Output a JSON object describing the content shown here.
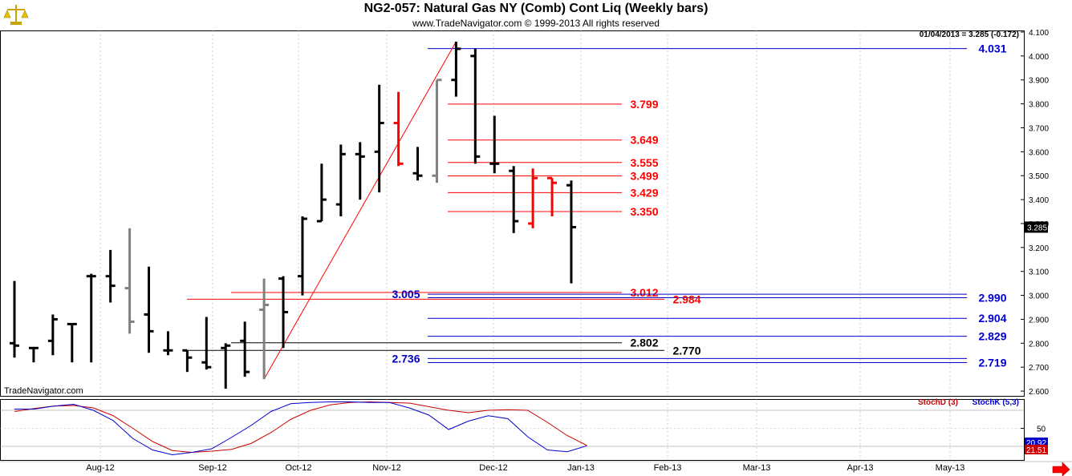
{
  "header": {
    "title": "NG2-057:  Natural Gas NY (Comb) Cont Liq  (Weekly bars)",
    "subtitle": "www.TradeNavigator.com © 1999-2013 All rights reserved",
    "last_quote": "01/04/2013 = 3.285 (-0.172)",
    "watermark": "TradeNavigator.com"
  },
  "colors": {
    "up_bar": "#000000",
    "down_bar": "#ff0000",
    "neutral_bar": "#808080",
    "blue_level": "#0000cc",
    "red_level": "#ff0000",
    "black_level": "#000000",
    "stochd": "#cc0000",
    "stochk": "#0000cc"
  },
  "chart_data": [
    {
      "type": "ohlc",
      "title": "Natural Gas NY (Comb) Cont Liq (Weekly bars)",
      "x_ticks": [
        "Aug-12",
        "Sep-12",
        "Oct-12",
        "Nov-12",
        "Dec-12",
        "Jan-13",
        "Feb-13",
        "Mar-13",
        "Apr-13",
        "May-13"
      ],
      "y_ticks": [
        "4.100",
        "4.000",
        "3.900",
        "3.800",
        "3.700",
        "3.600",
        "3.500",
        "3.400",
        "3.300",
        "3.200",
        "3.100",
        "3.000",
        "2.900",
        "2.800",
        "2.700",
        "2.600"
      ],
      "ylim": [
        2.56,
        4.11
      ],
      "last_price_label": "3.285",
      "bars": [
        {
          "open": 2.8,
          "high": 3.06,
          "low": 2.74,
          "close": 2.79,
          "color": "up"
        },
        {
          "open": 2.78,
          "high": 2.78,
          "low": 2.72,
          "close": 2.78,
          "color": "up"
        },
        {
          "open": 2.81,
          "high": 2.92,
          "low": 2.75,
          "close": 2.9,
          "color": "up"
        },
        {
          "open": 2.88,
          "high": 2.88,
          "low": 2.72,
          "close": 2.88,
          "color": "up"
        },
        {
          "open": 3.08,
          "high": 3.09,
          "low": 2.72,
          "close": 3.08,
          "color": "up"
        },
        {
          "open": 3.08,
          "high": 3.19,
          "low": 2.97,
          "close": 3.04,
          "color": "up"
        },
        {
          "open": 3.03,
          "high": 3.28,
          "low": 2.84,
          "close": 2.89,
          "color": "neutral"
        },
        {
          "open": 2.92,
          "high": 3.12,
          "low": 2.76,
          "close": 2.85,
          "color": "up"
        },
        {
          "open": 2.77,
          "high": 2.85,
          "low": 2.75,
          "close": 2.77,
          "color": "up"
        },
        {
          "open": 2.77,
          "high": 2.77,
          "low": 2.68,
          "close": 2.74,
          "color": "up"
        },
        {
          "open": 2.72,
          "high": 2.91,
          "low": 2.69,
          "close": 2.7,
          "color": "up"
        },
        {
          "open": 2.78,
          "high": 2.8,
          "low": 2.61,
          "close": 2.79,
          "color": "up"
        },
        {
          "open": 2.81,
          "high": 2.89,
          "low": 2.66,
          "close": 2.68,
          "color": "up"
        },
        {
          "open": 2.94,
          "high": 3.07,
          "low": 2.65,
          "close": 2.96,
          "color": "neutral"
        },
        {
          "open": 3.07,
          "high": 3.08,
          "low": 2.78,
          "close": 2.93,
          "color": "up"
        },
        {
          "open": 3.08,
          "high": 3.33,
          "low": 3.0,
          "close": 3.32,
          "color": "up"
        },
        {
          "open": 3.31,
          "high": 3.55,
          "low": 3.31,
          "close": 3.4,
          "color": "up"
        },
        {
          "open": 3.38,
          "high": 3.63,
          "low": 3.33,
          "close": 3.59,
          "color": "up"
        },
        {
          "open": 3.59,
          "high": 3.64,
          "low": 3.4,
          "close": 3.58,
          "color": "up"
        },
        {
          "open": 3.6,
          "high": 3.88,
          "low": 3.43,
          "close": 3.72,
          "color": "up"
        },
        {
          "open": 3.72,
          "high": 3.85,
          "low": 3.54,
          "close": 3.55,
          "color": "down"
        },
        {
          "open": 3.51,
          "high": 3.62,
          "low": 3.48,
          "close": 3.5,
          "color": "up"
        },
        {
          "open": 3.5,
          "high": 3.9,
          "low": 3.47,
          "close": 3.9,
          "color": "neutral"
        },
        {
          "open": 3.9,
          "high": 4.06,
          "low": 3.83,
          "close": 4.03,
          "color": "up"
        },
        {
          "open": 4.0,
          "high": 4.03,
          "low": 3.55,
          "close": 3.58,
          "color": "up"
        },
        {
          "open": 3.55,
          "high": 3.75,
          "low": 3.51,
          "close": 3.55,
          "color": "up"
        },
        {
          "open": 3.52,
          "high": 3.54,
          "low": 3.26,
          "close": 3.31,
          "color": "up"
        },
        {
          "open": 3.3,
          "high": 3.53,
          "low": 3.28,
          "close": 3.49,
          "color": "down"
        },
        {
          "open": 3.49,
          "high": 3.49,
          "low": 3.33,
          "close": 3.47,
          "color": "down"
        },
        {
          "open": 3.46,
          "high": 3.48,
          "low": 3.05,
          "close": 3.285,
          "color": "up"
        }
      ],
      "levels": [
        {
          "value": 4.031,
          "label": "4.031",
          "color": "blue",
          "from_bar": 23
        },
        {
          "value": 3.799,
          "label": "3.799",
          "color": "red",
          "from_bar": 24
        },
        {
          "value": 3.649,
          "label": "3.649",
          "color": "red",
          "from_bar": 24
        },
        {
          "value": 3.555,
          "label": "3.555",
          "color": "red",
          "from_bar": 24
        },
        {
          "value": 3.499,
          "label": "3.499",
          "color": "red",
          "from_bar": 24
        },
        {
          "value": 3.429,
          "label": "3.429",
          "color": "red",
          "from_bar": 24
        },
        {
          "value": 3.35,
          "label": "3.350",
          "color": "red",
          "from_bar": 24
        },
        {
          "value": 3.012,
          "label": "3.012",
          "color": "red",
          "from_bar": 12
        },
        {
          "value": 3.005,
          "label": "3.005",
          "color": "blue",
          "from_bar": 23
        },
        {
          "value": 2.99,
          "label": "2.990",
          "color": "blue",
          "from_bar": 23
        },
        {
          "value": 2.984,
          "label": "2.984",
          "color": "red",
          "from_bar": 12
        },
        {
          "value": 2.904,
          "label": "2.904",
          "color": "blue",
          "from_bar": 23
        },
        {
          "value": 2.829,
          "label": "2.829",
          "color": "blue",
          "from_bar": 23
        },
        {
          "value": 2.802,
          "label": "2.802",
          "color": "black",
          "from_bar": 12
        },
        {
          "value": 2.77,
          "label": "2.770",
          "color": "black",
          "from_bar": 12
        },
        {
          "value": 2.736,
          "label": "2.736",
          "color": "blue",
          "from_bar": 23
        },
        {
          "value": 2.719,
          "label": "2.719",
          "color": "blue",
          "from_bar": 23
        }
      ],
      "trendline": {
        "x1": 13,
        "y1": 2.65,
        "x2": 23,
        "y2": 4.06
      }
    },
    {
      "type": "line",
      "legend": [
        "StochD (3)",
        "StochK (5,3)"
      ],
      "y_ticks": [
        "50"
      ],
      "ylim": [
        0,
        100
      ],
      "value_labels": [
        "20.92",
        "21.51"
      ],
      "series": [
        {
          "name": "StochD (3)",
          "values": [
            78,
            83,
            87,
            88,
            84,
            71,
            50,
            28,
            13,
            10,
            12,
            15,
            25,
            43,
            65,
            80,
            89,
            93,
            94,
            93,
            92,
            86,
            80,
            76,
            80,
            81,
            80,
            60,
            38,
            21.51
          ]
        },
        {
          "name": "StochK (5,3)",
          "values": [
            82,
            82,
            87,
            90,
            80,
            63,
            33,
            14,
            6,
            10,
            16,
            35,
            55,
            78,
            91,
            93,
            94,
            94,
            93,
            93,
            84,
            72,
            48,
            62,
            71,
            66,
            36,
            14,
            11,
            20.92
          ]
        }
      ]
    }
  ]
}
